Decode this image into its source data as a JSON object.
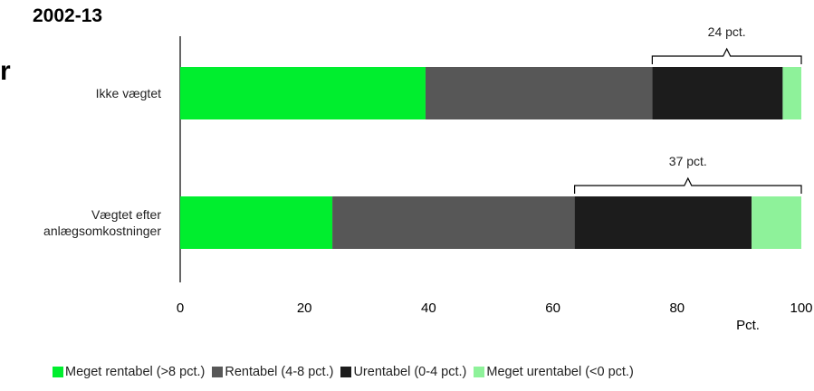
{
  "page_title": "2002-13",
  "cut_glyph": "r",
  "chart_data": {
    "type": "bar",
    "orientation": "horizontal",
    "stacked": true,
    "categories": [
      [
        "Ikke vægtet"
      ],
      [
        "Vægtet efter",
        "anlægsomkostninger"
      ]
    ],
    "series": [
      {
        "name": "Meget rentabel (>8 pct.)",
        "color": "#00ee2e",
        "values": [
          39.5,
          24.5
        ]
      },
      {
        "name": "Rentabel (4-8 pct.)",
        "color": "#575757",
        "values": [
          36.5,
          39
        ]
      },
      {
        "name": "Urentabel (0-4 pct.)",
        "color": "#1c1c1c",
        "values": [
          21,
          28.5
        ]
      },
      {
        "name": "Meget urentabel (<0 pct.)",
        "color": "#8ef29a",
        "values": [
          3,
          8
        ]
      }
    ],
    "xlim": [
      0,
      100
    ],
    "xticks": [
      "0",
      "20",
      "40",
      "60",
      "80",
      "100"
    ],
    "xlabel": "Pct.",
    "annotations": [
      {
        "category_index": 0,
        "from": 76,
        "to": 100,
        "text": "24 pct."
      },
      {
        "category_index": 1,
        "from": 63.5,
        "to": 100,
        "text": "37 pct."
      }
    ],
    "grid": false,
    "legend": "bottom"
  }
}
